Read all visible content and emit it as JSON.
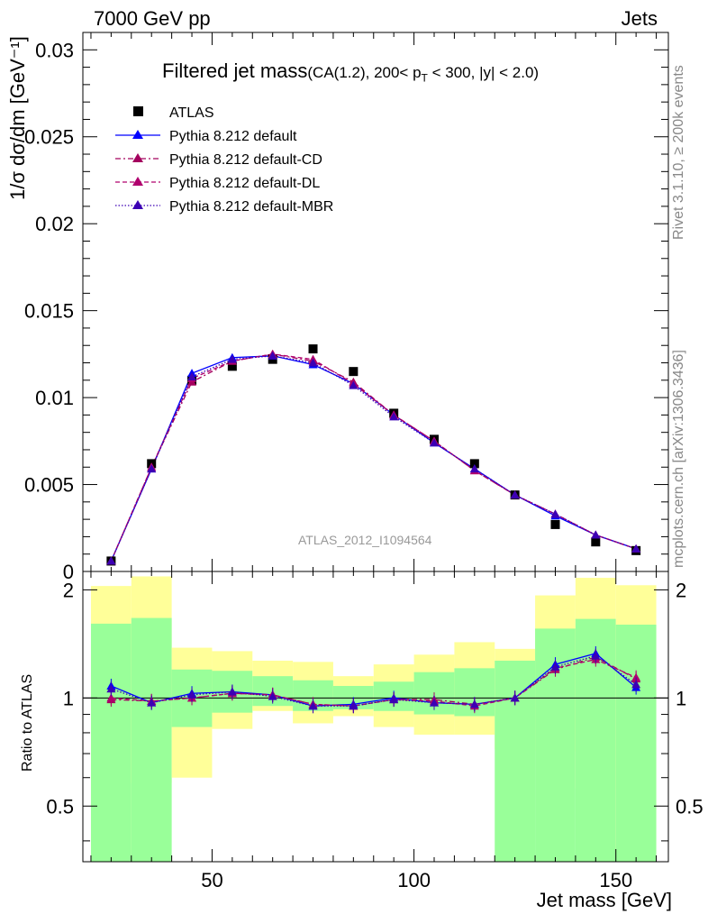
{
  "header": {
    "left": "7000 GeV pp",
    "right": "Jets"
  },
  "side_labels": {
    "rivet": "Rivet 3.1.10, ≥ 200k events",
    "mcplots": "mcplots.cern.ch [arXiv:1306.3436]"
  },
  "title": {
    "main": "Filtered jet mass",
    "sub_pre": "(CA(1.2), 200< p",
    "sub_T": "T",
    "sub_post": " < 300, |y| < 2.0)"
  },
  "analysis_id": "ATLAS_2012_I1094564",
  "colors": {
    "data": "#000000",
    "default": "#0000ff",
    "cd": "#a4005e",
    "dl": "#b0006e",
    "mbr": "#3c00b4",
    "band_yellow": "#ffff99",
    "band_green": "#99ff99"
  },
  "chart_data": [
    {
      "type": "line",
      "panel": "main",
      "ylabel": "1/σ dσ/dm [GeV⁻¹]",
      "xlim": [
        18,
        163
      ],
      "ylim": [
        0,
        0.031
      ],
      "y_ticks": [
        0,
        0.005,
        0.01,
        0.015,
        0.02,
        0.025,
        0.03
      ],
      "y_tick_labels": [
        "0",
        "0.005",
        "0.01",
        "0.015",
        "0.02",
        "0.025",
        "0.03"
      ],
      "x": [
        25,
        35,
        45,
        55,
        65,
        75,
        85,
        95,
        105,
        115,
        125,
        135,
        145,
        155
      ],
      "series": [
        {
          "name": "ATLAS",
          "style": "markers",
          "marker": "square",
          "values": [
            0.0006,
            0.0062,
            0.011,
            0.0118,
            0.0122,
            0.0128,
            0.0115,
            0.0091,
            0.0076,
            0.0062,
            0.0044,
            0.0027,
            0.0017,
            0.0012
          ]
        },
        {
          "name": "Pythia 8.212 default",
          "style": "solid",
          "values": [
            0.0006,
            0.0059,
            0.0114,
            0.0123,
            0.0124,
            0.0119,
            0.0108,
            0.009,
            0.0074,
            0.0059,
            0.0044,
            0.0032,
            0.0021,
            0.0013
          ]
        },
        {
          "name": "Pythia 8.212 default-CD",
          "style": "dashdot",
          "values": [
            0.0006,
            0.006,
            0.0109,
            0.0121,
            0.0125,
            0.0121,
            0.0109,
            0.009,
            0.0075,
            0.0058,
            0.0044,
            0.0033,
            0.0021,
            0.0013
          ]
        },
        {
          "name": "Pythia 8.212 default-DL",
          "style": "dashed",
          "values": [
            0.0006,
            0.006,
            0.0111,
            0.0121,
            0.0125,
            0.0122,
            0.0108,
            0.009,
            0.0075,
            0.0058,
            0.0044,
            0.0033,
            0.0021,
            0.0013
          ]
        },
        {
          "name": "Pythia 8.212 default-MBR",
          "style": "dotted",
          "values": [
            0.0006,
            0.0059,
            0.0112,
            0.0122,
            0.0124,
            0.012,
            0.0107,
            0.0089,
            0.0074,
            0.0059,
            0.0044,
            0.0033,
            0.0021,
            0.0013
          ]
        }
      ]
    },
    {
      "type": "line",
      "panel": "ratio",
      "ylabel": "Ratio to ATLAS",
      "xlabel": "Jet mass [GeV]",
      "xlim": [
        18,
        163
      ],
      "ylim": [
        0.35,
        2.25
      ],
      "scale": "log",
      "x_ticks": [
        50,
        100,
        150
      ],
      "x_tick_labels": [
        "50",
        "100",
        "150"
      ],
      "y_ticks": [
        0.5,
        1,
        2
      ],
      "y_tick_labels": [
        "0.5",
        "1",
        "2"
      ],
      "bins": [
        [
          20,
          30
        ],
        [
          30,
          40
        ],
        [
          40,
          50
        ],
        [
          50,
          60
        ],
        [
          60,
          70
        ],
        [
          70,
          80
        ],
        [
          80,
          90
        ],
        [
          90,
          100
        ],
        [
          100,
          110
        ],
        [
          110,
          120
        ],
        [
          120,
          130
        ],
        [
          130,
          140
        ],
        [
          140,
          150
        ],
        [
          150,
          160
        ]
      ],
      "band_yellow": [
        [
          0.2,
          2.05
        ],
        [
          0.58,
          2.18
        ],
        [
          0.6,
          1.38
        ],
        [
          0.82,
          1.35
        ],
        [
          0.92,
          1.27
        ],
        [
          0.85,
          1.26
        ],
        [
          0.89,
          1.15
        ],
        [
          0.83,
          1.24
        ],
        [
          0.79,
          1.32
        ],
        [
          0.79,
          1.43
        ],
        [
          0.72,
          1.37
        ],
        [
          0.71,
          1.93
        ],
        [
          0.56,
          2.16
        ],
        [
          0.2,
          2.06
        ]
      ],
      "band_green": [
        [
          0.2,
          1.61
        ],
        [
          0.2,
          1.67
        ],
        [
          0.83,
          1.2
        ],
        [
          0.91,
          1.19
        ],
        [
          0.95,
          1.15
        ],
        [
          0.92,
          1.12
        ],
        [
          0.93,
          1.08
        ],
        [
          0.92,
          1.11
        ],
        [
          0.9,
          1.18
        ],
        [
          0.89,
          1.21
        ],
        [
          0.2,
          1.27
        ],
        [
          0.2,
          1.56
        ],
        [
          0.2,
          1.66
        ],
        [
          0.2,
          1.6
        ]
      ],
      "series": [
        {
          "name": "Pythia 8.212 default",
          "style": "solid",
          "values": [
            1.08,
            0.97,
            1.03,
            1.04,
            1.02,
            0.95,
            0.96,
            1.0,
            0.97,
            0.96,
            1.0,
            1.24,
            1.33,
            1.07
          ]
        },
        {
          "name": "Pythia 8.212 default-CD",
          "style": "dashdot",
          "values": [
            0.99,
            0.98,
            1.0,
            1.03,
            1.02,
            0.96,
            0.95,
            0.99,
            0.99,
            0.96,
            1.0,
            1.2,
            1.3,
            1.13
          ]
        },
        {
          "name": "Pythia 8.212 default-DL",
          "style": "dashed",
          "values": [
            1.0,
            0.98,
            1.0,
            1.03,
            1.02,
            0.96,
            0.95,
            0.99,
            0.98,
            0.95,
            1.0,
            1.21,
            1.28,
            1.14
          ]
        },
        {
          "name": "Pythia 8.212 default-MBR",
          "style": "dotted",
          "values": [
            1.06,
            0.97,
            1.02,
            1.04,
            1.01,
            0.95,
            0.95,
            0.99,
            0.97,
            0.96,
            1.0,
            1.22,
            1.31,
            1.09
          ]
        }
      ]
    }
  ]
}
